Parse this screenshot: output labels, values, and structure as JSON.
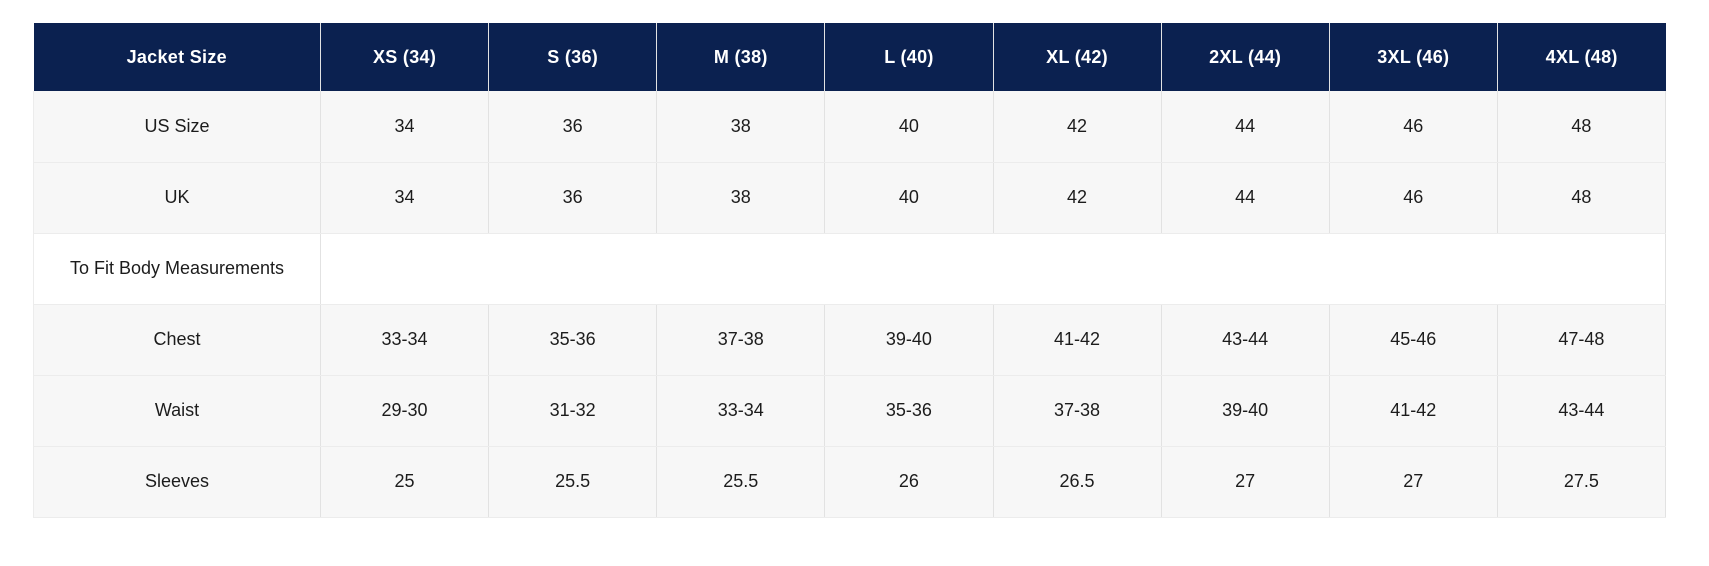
{
  "chart_data": {
    "type": "table",
    "corner_label": "Jacket Size",
    "size_columns": [
      "XS (34)",
      "S (36)",
      "M (38)",
      "L (40)",
      "XL (42)",
      "2XL (44)",
      "3XL (46)",
      "4XL (48)"
    ],
    "rows": [
      {
        "label": "US Size",
        "kind": "data",
        "values": [
          "34",
          "36",
          "38",
          "40",
          "42",
          "44",
          "46",
          "48"
        ]
      },
      {
        "label": "UK",
        "kind": "data",
        "values": [
          "34",
          "36",
          "38",
          "40",
          "42",
          "44",
          "46",
          "48"
        ]
      },
      {
        "label": "To Fit Body Measurements",
        "kind": "section",
        "values": []
      },
      {
        "label": "Chest",
        "kind": "data",
        "values": [
          "33-34",
          "35-36",
          "37-38",
          "39-40",
          "41-42",
          "43-44",
          "45-46",
          "47-48"
        ]
      },
      {
        "label": "Waist",
        "kind": "data",
        "values": [
          "29-30",
          "31-32",
          "33-34",
          "35-36",
          "37-38",
          "39-40",
          "41-42",
          "43-44"
        ]
      },
      {
        "label": "Sleeves",
        "kind": "data",
        "values": [
          "25",
          "25.5",
          "25.5",
          "26",
          "26.5",
          "27",
          "27",
          "27.5"
        ]
      }
    ],
    "layout_hints": {
      "grid": "all cells bordered",
      "section_row_spans_full_width": true,
      "header_style": "navy background, white bold text"
    }
  },
  "colors": {
    "header_bg": "#0b2150",
    "header_text": "#ffffff",
    "row_bg": "#f7f7f7",
    "section_row_bg": "#ffffff",
    "border_vertical": "#e2e2e2",
    "border_horizontal": "#ececec",
    "body_text": "#1c1c1c",
    "page_bg": "#ffffff"
  }
}
